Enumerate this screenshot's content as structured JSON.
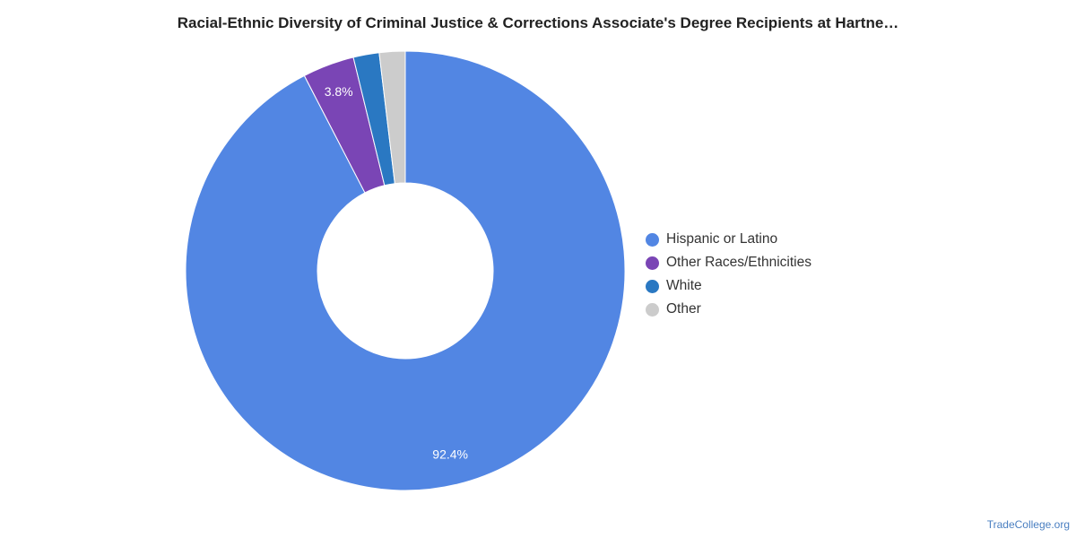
{
  "chart_data": {
    "type": "pie",
    "title": "Racial-Ethnic Diversity of Criminal Justice & Corrections Associate's Degree Recipients at Hartne…",
    "donut": true,
    "categories": [
      "Hispanic or Latino",
      "Other Races/Ethnicities",
      "White",
      "Other"
    ],
    "values": [
      92.4,
      3.8,
      1.9,
      1.9
    ],
    "colors": [
      "#5286e3",
      "#7a45b5",
      "#2a78c2",
      "#cccccc"
    ],
    "data_labels": [
      "92.4%",
      "3.8%",
      "",
      ""
    ],
    "legend_position": "right"
  },
  "source": "TradeCollege.org"
}
